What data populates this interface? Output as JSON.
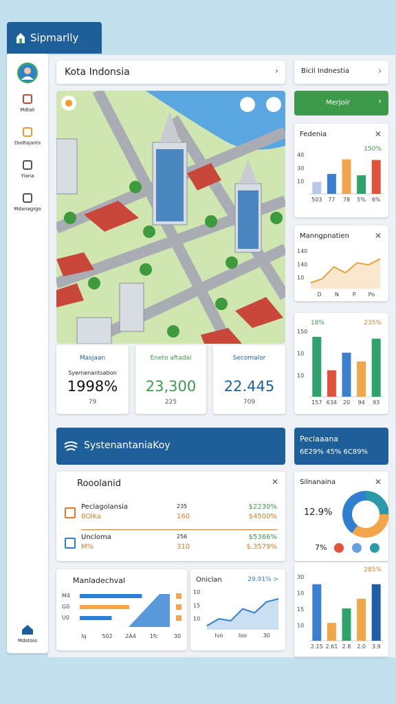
{
  "header": {
    "title": "Sipmarlly"
  },
  "sidebar": {
    "items": [
      "Mdtali",
      "Dodtajants",
      "Yiana",
      "Mdanagrgo"
    ],
    "home": "Mdotoio"
  },
  "search": {
    "title": "Kota Indonsia"
  },
  "stats": [
    {
      "title": "Masjaan",
      "subtitle": "Syernenantsation",
      "value": "1998%",
      "note": "79"
    },
    {
      "title": "Eneto aftadai",
      "subtitle": "",
      "value": "23,300",
      "note": "225"
    },
    {
      "title": "Secomalor",
      "subtitle": "",
      "value": "22.445",
      "note": "709"
    }
  ],
  "banner": {
    "title": "SystenantaniaKoy"
  },
  "list": {
    "title": "Rooolanid",
    "rows": [
      {
        "name": "Peclagolansia",
        "sub": "8Olka",
        "a": "235",
        "b": "160",
        "c": "$2230%",
        "d": "$4500%"
      },
      {
        "name": "Uncloma",
        "sub": "M%",
        "a": "256",
        "b": "310",
        "c": "$5366%",
        "d": "$.3579%"
      }
    ]
  },
  "hchart": {
    "title": "Manladechval",
    "labels": [
      "M4",
      "G0",
      "U0"
    ],
    "values": [
      78,
      62,
      40
    ],
    "colors": [
      "#2f7fd0",
      "#f3a54b",
      "#2f7fd0"
    ],
    "xlabels": [
      "Iq",
      "502",
      "2A4",
      "1fc",
      "30"
    ],
    "ylim": [
      0,
      100
    ]
  },
  "oniclan": {
    "title": "Oniclan",
    "badge": "29.91% >",
    "ylabels": [
      "10",
      "15",
      "10"
    ],
    "values": [
      8,
      22,
      18,
      42,
      34,
      56,
      62
    ],
    "xlabels": [
      "Ivo",
      "Ioo",
      "30"
    ],
    "ylim": [
      0,
      80
    ]
  },
  "right": {
    "top": "Bicil Indnestia",
    "button": "Merjoir",
    "banner_title": "Peclaaana",
    "banner_values": "6E29% 45% 6C89%"
  },
  "fedenia": {
    "title": "Fedenia",
    "badge": "150%",
    "ylabels": [
      "40",
      "30",
      "10"
    ],
    "values": [
      18,
      30,
      52,
      28,
      51
    ],
    "colors": [
      "#b8c8e8",
      "#3a7fd0",
      "#f3a54b",
      "#2fa36b",
      "#e0523a"
    ],
    "xlabels": [
      "503",
      "77",
      "78",
      "5%",
      "6%"
    ],
    "ylim": [
      0,
      60
    ]
  },
  "line": {
    "title": "Manngpnatien",
    "ylabels": [
      "140",
      "140",
      "10"
    ],
    "values": [
      15,
      25,
      55,
      40,
      65,
      60,
      75
    ],
    "xlabels": [
      "D",
      "N",
      "P",
      "Po"
    ],
    "ylim": [
      0,
      100
    ]
  },
  "bars3": {
    "badges": [
      "18%",
      "235%"
    ],
    "ylabels": [
      "150",
      "10",
      "10"
    ],
    "values": [
      68,
      30,
      50,
      40,
      66
    ],
    "colors": [
      "#2fa36b",
      "#e0523a",
      "#3a7fd0",
      "#f3a54b",
      "#2fa36b"
    ],
    "xlabels": [
      "157",
      "634",
      "20",
      "94",
      "93"
    ],
    "ylim": [
      0,
      75
    ]
  },
  "donut": {
    "title": "Silnanaina",
    "value": "12.9%",
    "note": "7%",
    "values": [
      25,
      35,
      40
    ],
    "colors": [
      "#2a9aa8",
      "#f3a54b",
      "#2f7fd0"
    ]
  },
  "bars4": {
    "badge": "285%",
    "ylabels": [
      "30",
      "10",
      "15",
      "10"
    ],
    "values": [
      70,
      22,
      40,
      52,
      70
    ],
    "colors": [
      "#3a7fd0",
      "#f3a54b",
      "#2fa36b",
      "#f3a54b",
      "#1f5fa8"
    ],
    "xlabels": [
      "2.15",
      "2.61",
      "2.8",
      "2.0",
      "3.9"
    ],
    "ylim": [
      0,
      80
    ]
  }
}
